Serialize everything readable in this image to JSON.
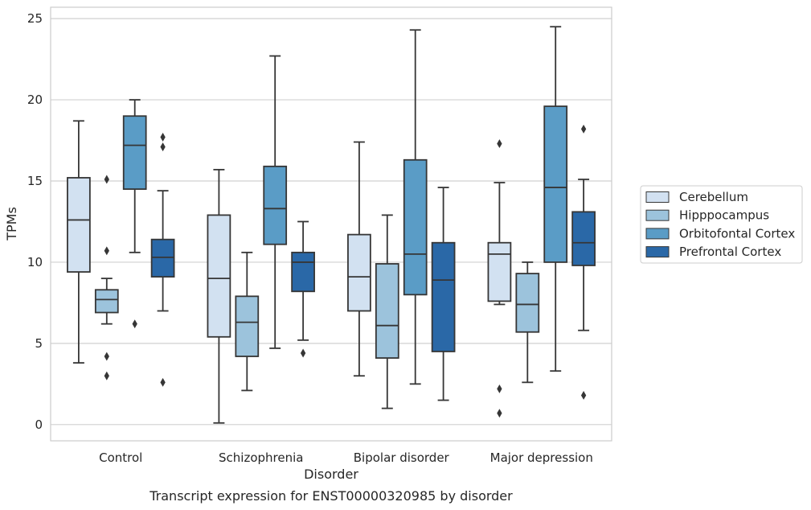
{
  "chart_data": {
    "type": "box",
    "caption": "Transcript expression for ENST00000320985 by disorder",
    "xlabel": "Disorder",
    "ylabel": "TPMs",
    "ylim": [
      -1,
      25.7
    ],
    "yticks": [
      0,
      5,
      10,
      15,
      20,
      25
    ],
    "grid": "horizontal",
    "legend_position": "right",
    "categories": [
      "Control",
      "Schizophrenia",
      "Bipolar disorder",
      "Major depression"
    ],
    "series": [
      {
        "name": "Cerebellum",
        "color": "#d2e1f1",
        "boxes": [
          {
            "whislo": 3.8,
            "q1": 9.4,
            "med": 12.6,
            "q3": 15.2,
            "whishi": 18.7,
            "fliers": []
          },
          {
            "whislo": 0.1,
            "q1": 5.4,
            "med": 9.0,
            "q3": 12.9,
            "whishi": 15.7,
            "fliers": []
          },
          {
            "whislo": 3.0,
            "q1": 7.0,
            "med": 9.1,
            "q3": 11.7,
            "whishi": 17.4,
            "fliers": []
          },
          {
            "whislo": 7.4,
            "q1": 7.6,
            "med": 10.5,
            "q3": 11.2,
            "whishi": 14.9,
            "fliers": [
              17.3,
              2.2,
              0.7
            ]
          }
        ]
      },
      {
        "name": "Hipppocampus",
        "color": "#9cc3dc",
        "boxes": [
          {
            "whislo": 6.2,
            "q1": 6.9,
            "med": 7.7,
            "q3": 8.3,
            "whishi": 9.0,
            "fliers": [
              15.1,
              10.7,
              4.2,
              3.0
            ]
          },
          {
            "whislo": 2.1,
            "q1": 4.2,
            "med": 6.3,
            "q3": 7.9,
            "whishi": 10.6,
            "fliers": []
          },
          {
            "whislo": 1.0,
            "q1": 4.1,
            "med": 6.1,
            "q3": 9.9,
            "whishi": 12.9,
            "fliers": []
          },
          {
            "whislo": 2.6,
            "q1": 5.7,
            "med": 7.4,
            "q3": 9.3,
            "whishi": 10.0,
            "fliers": []
          }
        ]
      },
      {
        "name": "Orbitofontal Cortex",
        "color": "#5a9cc6",
        "boxes": [
          {
            "whislo": 10.6,
            "q1": 14.5,
            "med": 17.2,
            "q3": 19.0,
            "whishi": 20.0,
            "fliers": [
              6.2
            ]
          },
          {
            "whislo": 4.7,
            "q1": 11.1,
            "med": 13.3,
            "q3": 15.9,
            "whishi": 22.7,
            "fliers": []
          },
          {
            "whislo": 2.5,
            "q1": 8.0,
            "med": 10.5,
            "q3": 16.3,
            "whishi": 24.3,
            "fliers": []
          },
          {
            "whislo": 3.3,
            "q1": 10.0,
            "med": 14.6,
            "q3": 19.6,
            "whishi": 24.5,
            "fliers": []
          }
        ]
      },
      {
        "name": "Prefrontal Cortex",
        "color": "#2a68a7",
        "boxes": [
          {
            "whislo": 7.0,
            "q1": 9.1,
            "med": 10.3,
            "q3": 11.4,
            "whishi": 14.4,
            "fliers": [
              17.7,
              17.1,
              2.6
            ]
          },
          {
            "whislo": 5.2,
            "q1": 8.2,
            "med": 10.0,
            "q3": 10.6,
            "whishi": 12.5,
            "fliers": [
              4.4
            ]
          },
          {
            "whislo": 1.5,
            "q1": 4.5,
            "med": 8.9,
            "q3": 11.2,
            "whishi": 14.6,
            "fliers": []
          },
          {
            "whislo": 5.8,
            "q1": 9.8,
            "med": 11.2,
            "q3": 13.1,
            "whishi": 15.1,
            "fliers": [
              18.2,
              1.8
            ]
          }
        ]
      }
    ]
  },
  "colors": {
    "axis_frame": "#cccccc",
    "grid": "#d0d0d0",
    "box_edge": "#363636",
    "legend_frame": "#cccccc"
  }
}
